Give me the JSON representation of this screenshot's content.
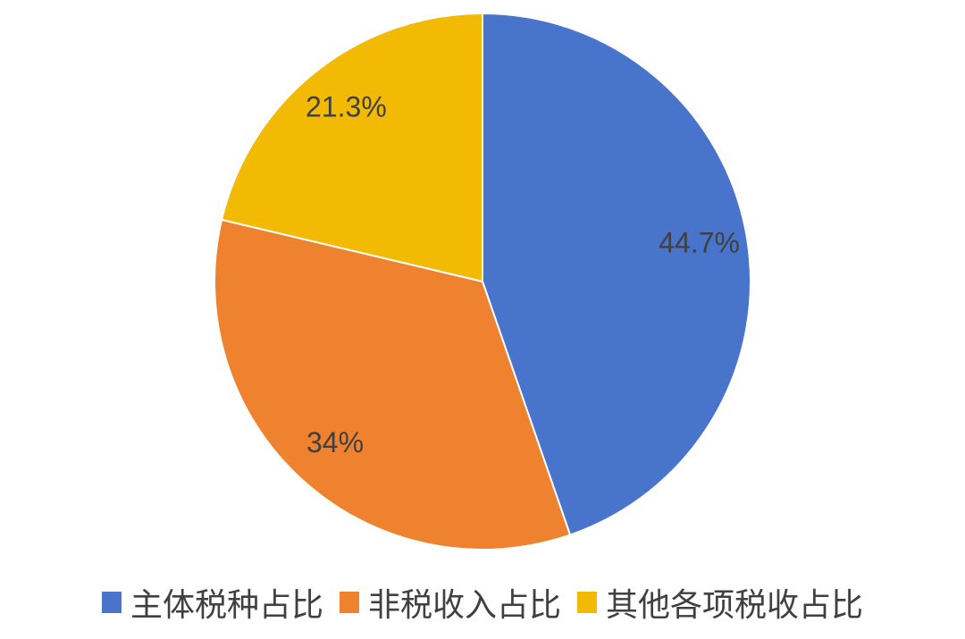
{
  "chart_data": {
    "type": "pie",
    "title": "",
    "start_angle": "12 o'clock, clockwise",
    "legend_position": "bottom",
    "slices": [
      {
        "name": "主体税种占比",
        "value": 44.7,
        "label": "44.7%",
        "color": "#4874CB"
      },
      {
        "name": "非税收入占比",
        "value": 34,
        "label": "34%",
        "color": "#EE822F"
      },
      {
        "name": "其他各项税收占比",
        "value": 21.3,
        "label": "21.3%",
        "color": "#F2BA02"
      }
    ],
    "label_color": "#404040"
  }
}
